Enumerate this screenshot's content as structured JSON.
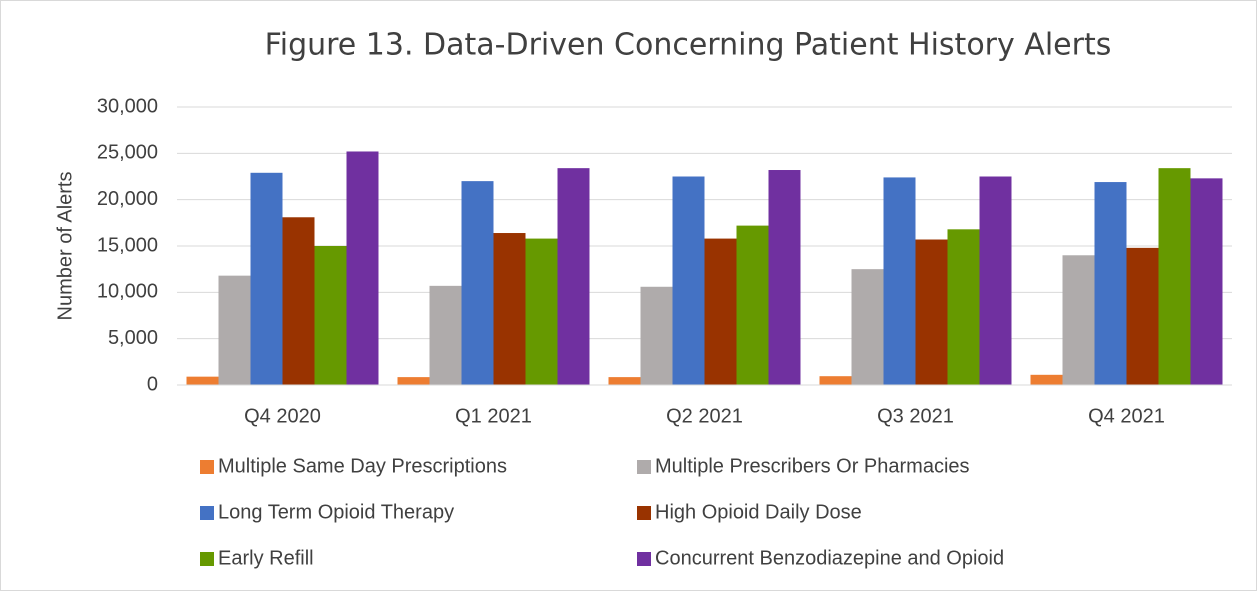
{
  "chart_data": {
    "type": "bar",
    "title": "Figure 13. Data-Driven Concerning Patient History Alerts",
    "y_label": "Number of Alerts",
    "categories": [
      "Q4 2020",
      "Q1 2021",
      "Q2 2021",
      "Q3 2021",
      "Q4 2021"
    ],
    "series": [
      {
        "name": "Multiple Same Day Prescriptions",
        "color": "#ed7d31",
        "values": [
          900,
          850,
          850,
          950,
          1100
        ]
      },
      {
        "name": "Multiple Prescribers Or Pharmacies",
        "color": "#afabab",
        "values": [
          11800,
          10700,
          10600,
          12500,
          14000
        ]
      },
      {
        "name": "Long Term Opioid Therapy",
        "color": "#4472c4",
        "values": [
          22900,
          22000,
          22500,
          22400,
          21900
        ]
      },
      {
        "name": "High Opioid Daily Dose",
        "color": "#993300",
        "values": [
          18100,
          16400,
          15800,
          15700,
          14800
        ]
      },
      {
        "name": "Early Refill",
        "color": "#669900",
        "values": [
          15000,
          15800,
          17200,
          16800,
          23400
        ]
      },
      {
        "name": "Concurrent Benzodiazepine and Opioid",
        "color": "#7030a0",
        "values": [
          25200,
          23400,
          23200,
          22500,
          22300
        ]
      }
    ],
    "ylim": [
      0,
      30000
    ],
    "yticks": [
      0,
      {
        "value": 5000,
        "label": "5,000"
      },
      {
        "value": 10000,
        "label": "10,000"
      },
      {
        "value": 15000,
        "label": "15,000"
      },
      {
        "value": 20000,
        "label": "20,000"
      },
      {
        "value": 25000,
        "label": "25,000"
      },
      {
        "value": 30000,
        "label": "30,000"
      }
    ],
    "grid": true,
    "legend": "bottom"
  }
}
